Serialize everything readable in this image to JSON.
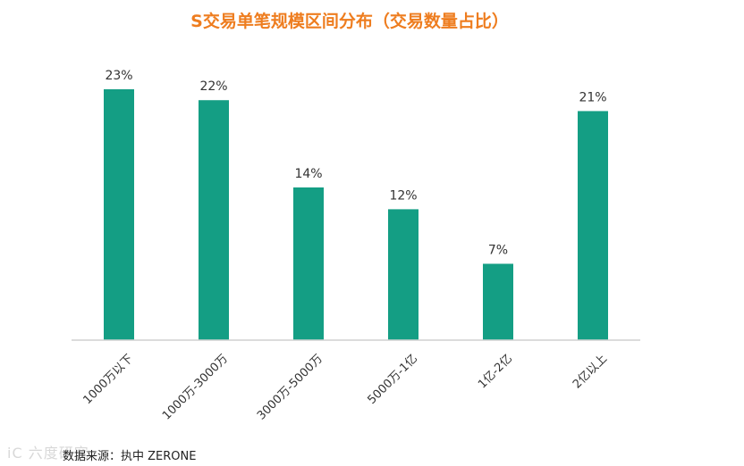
{
  "chart_data": {
    "type": "bar",
    "title": "S交易单笔规模区间分布（交易数量占比）",
    "categories": [
      "1000万以下",
      "1000万-3000万",
      "3000万-5000万",
      "5000万-1亿",
      "1亿-2亿",
      "2亿以上"
    ],
    "values": [
      23,
      22,
      14,
      12,
      7,
      21
    ],
    "value_labels": [
      "23%",
      "22%",
      "14%",
      "12%",
      "7%",
      "21%"
    ],
    "unit": "%",
    "ylim": [
      0,
      25
    ],
    "grid": false,
    "legend": "none"
  },
  "colors": {
    "bar": "#149e84",
    "title": "#ee7d1f",
    "axis": "#d0d0d0"
  },
  "source_text": "数据来源：执中 ZERONE",
  "watermark_text": "iC 六度研究"
}
